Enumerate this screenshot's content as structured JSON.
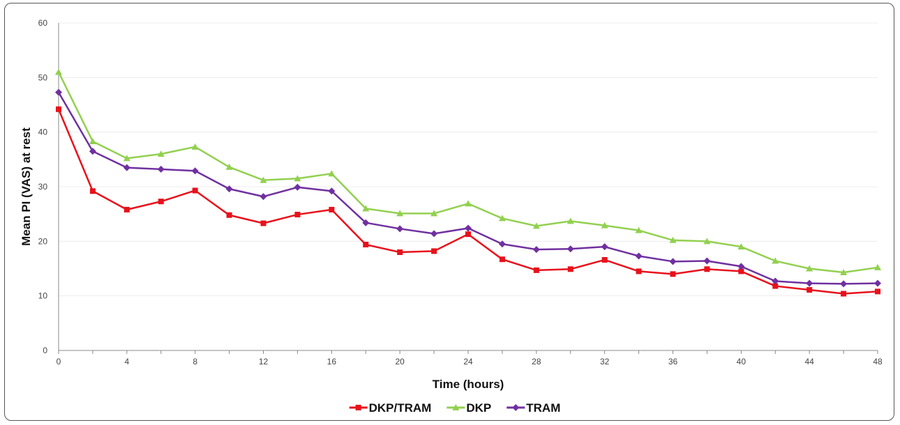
{
  "chart_data": {
    "type": "line",
    "title": "",
    "xlabel": "Time (hours)",
    "ylabel": "Mean PI (VAS) at rest",
    "xlim": [
      0,
      48
    ],
    "ylim": [
      0,
      60
    ],
    "x_ticks": [
      0,
      4,
      8,
      12,
      16,
      20,
      24,
      28,
      32,
      36,
      40,
      44,
      48
    ],
    "y_ticks": [
      0,
      10,
      20,
      30,
      40,
      50,
      60
    ],
    "grid": true,
    "legend_position": "bottom",
    "x": [
      0,
      2,
      4,
      6,
      8,
      10,
      12,
      14,
      16,
      18,
      20,
      22,
      24,
      26,
      28,
      30,
      32,
      34,
      36,
      38,
      40,
      42,
      44,
      46,
      48
    ],
    "series": [
      {
        "name": "DKP/TRAM",
        "color": "#e8111b",
        "marker": "square",
        "values": [
          44.2,
          29.2,
          25.8,
          27.3,
          29.3,
          24.8,
          23.3,
          24.9,
          25.8,
          19.4,
          18.0,
          18.2,
          21.3,
          16.7,
          14.7,
          14.9,
          16.6,
          14.5,
          14.0,
          14.9,
          14.5,
          11.8,
          11.1,
          10.4,
          10.8
        ]
      },
      {
        "name": "DKP",
        "color": "#92d050",
        "marker": "triangle",
        "values": [
          51.0,
          38.3,
          35.2,
          36.0,
          37.3,
          33.6,
          31.2,
          31.5,
          32.4,
          26.0,
          25.1,
          25.1,
          26.9,
          24.2,
          22.8,
          23.7,
          22.9,
          22.0,
          20.2,
          20.0,
          19.0,
          16.4,
          15.0,
          14.3,
          15.2
        ]
      },
      {
        "name": "TRAM",
        "color": "#7030a0",
        "marker": "diamond",
        "values": [
          47.3,
          36.5,
          33.5,
          33.2,
          32.9,
          29.6,
          28.2,
          29.9,
          29.2,
          23.4,
          22.3,
          21.4,
          22.4,
          19.5,
          18.5,
          18.6,
          19.0,
          17.3,
          16.3,
          16.4,
          15.4,
          12.7,
          12.3,
          12.2,
          12.3
        ]
      }
    ]
  }
}
